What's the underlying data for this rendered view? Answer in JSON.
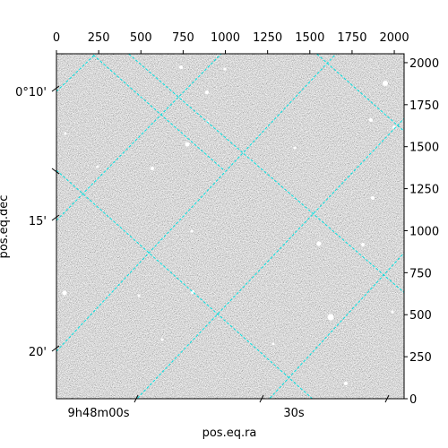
{
  "chart_data": {
    "type": "image",
    "xlabel": "pos.eq.ra",
    "ylabel": "pos.eq.dec",
    "xlim": [
      0,
      2058
    ],
    "ylim": [
      0,
      2053
    ],
    "xticks": [
      0,
      250,
      500,
      750,
      1000,
      1250,
      1500,
      1750,
      2000
    ],
    "yticks": [
      0,
      250,
      500,
      750,
      1000,
      1250,
      1500,
      1750,
      2000
    ],
    "ra_ticks": [
      "9h48m00s",
      "30s"
    ],
    "dec_ticks": [
      "0°10'",
      "15'",
      "20'"
    ],
    "grid_color": "#00e0e0"
  }
}
